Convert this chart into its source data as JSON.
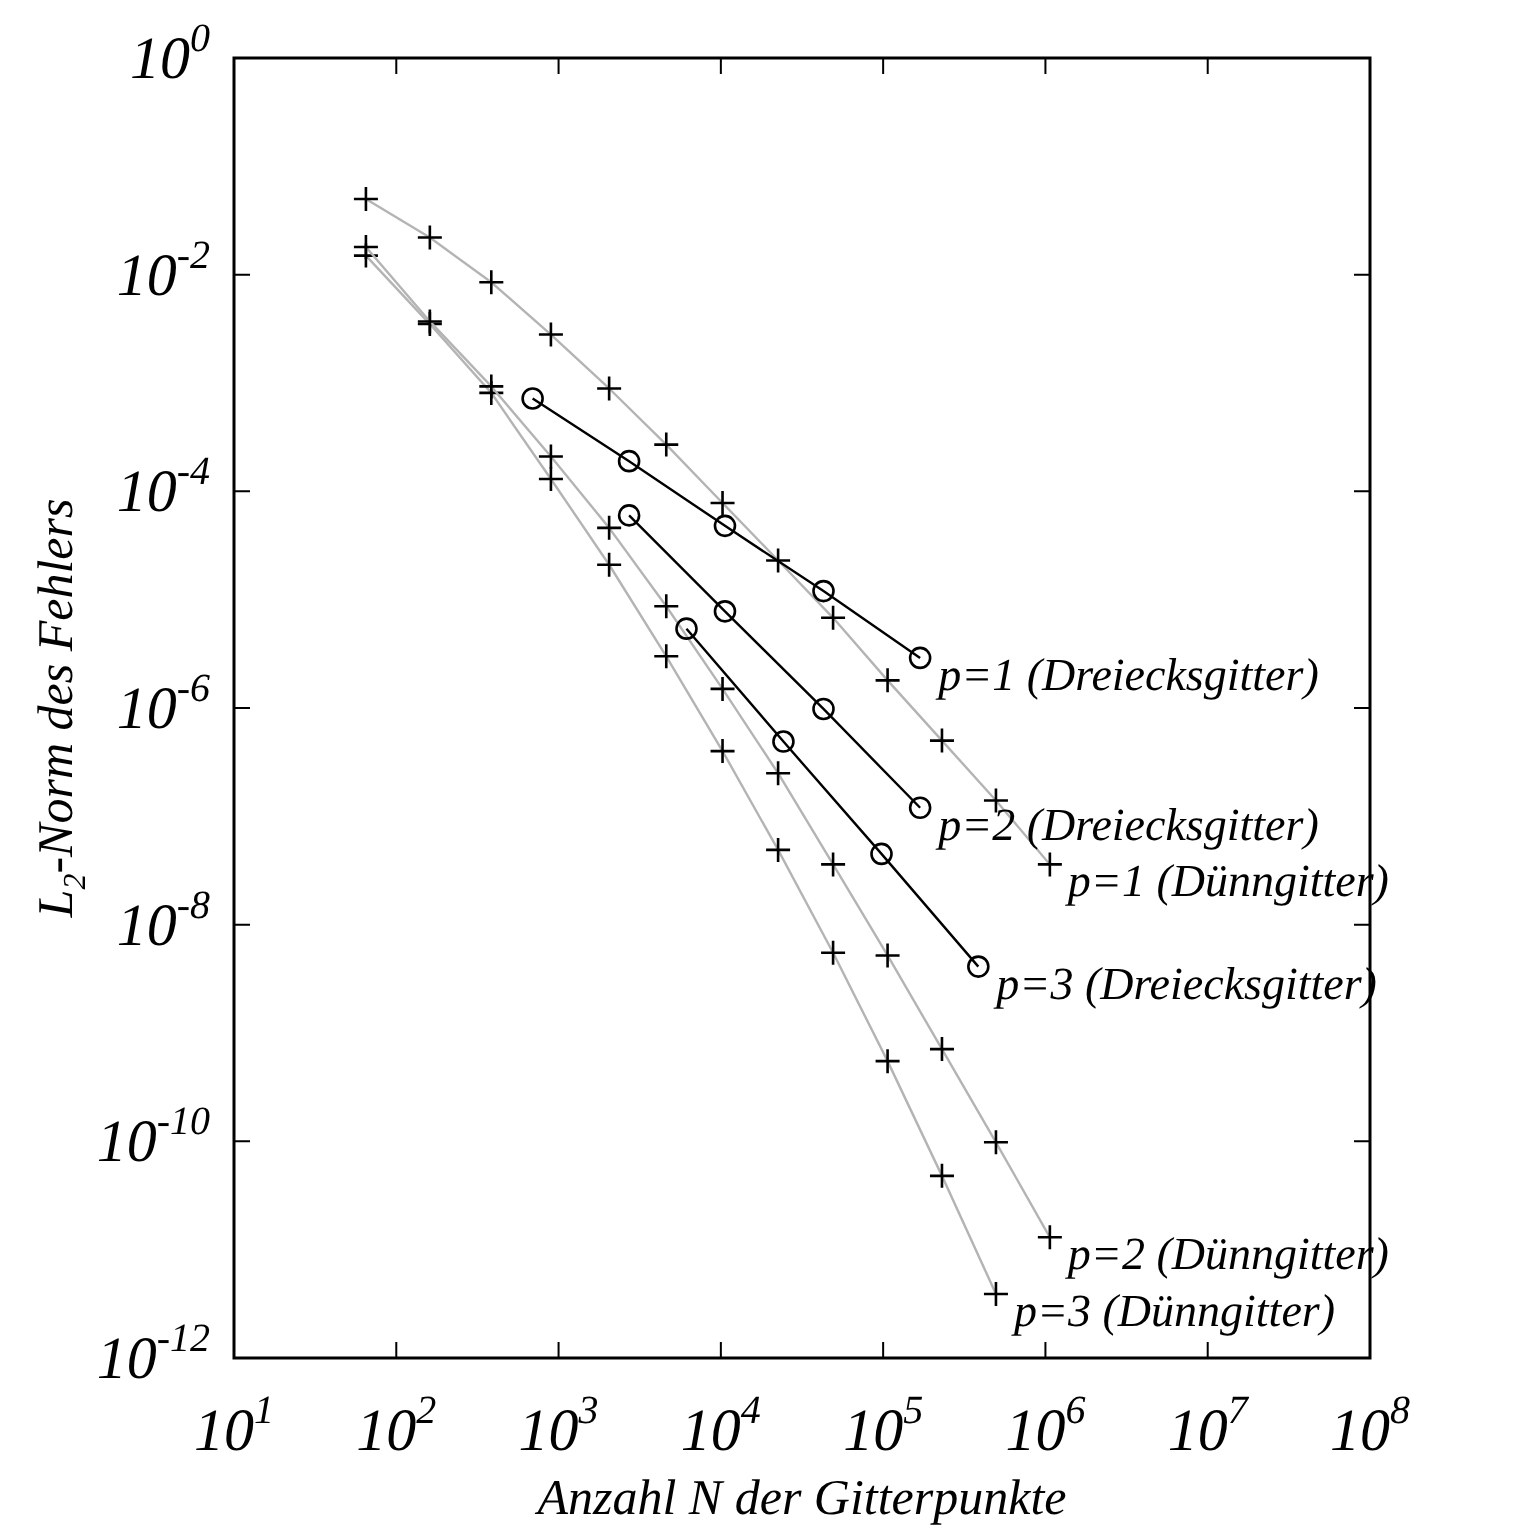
{
  "chart_data": {
    "type": "line",
    "xlabel": "Anzahl N der Gitterpunkte",
    "ylabel": "L$_{2}$-Norm des Fehlers",
    "log": "xy",
    "xlim": [
      10,
      100000000
    ],
    "ylim": [
      1e-12,
      1
    ],
    "xticks": [
      {
        "value": 10,
        "label": "10$^{1}$"
      },
      {
        "value": 100,
        "label": "10$^{2}$"
      },
      {
        "value": 1000,
        "label": "10$^{3}$"
      },
      {
        "value": 10000,
        "label": "10$^{4}$"
      },
      {
        "value": 100000,
        "label": "10$^{5}$"
      },
      {
        "value": 1000000,
        "label": "10$^{6}$"
      },
      {
        "value": 10000000,
        "label": "10$^{7}$"
      },
      {
        "value": 100000000,
        "label": "10$^{8}$"
      }
    ],
    "yticks": [
      {
        "value": 1e-12,
        "label": "10$^{-12}$"
      },
      {
        "value": 1e-10,
        "label": "10$^{-10}$"
      },
      {
        "value": 1e-08,
        "label": "10$^{-8}$"
      },
      {
        "value": 1e-06,
        "label": "10$^{-6}$"
      },
      {
        "value": 0.0001,
        "label": "10$^{-4}$"
      },
      {
        "value": 0.01,
        "label": "10$^{-2}$"
      },
      {
        "value": 1,
        "label": "10$^{0}$"
      }
    ],
    "series": [
      {
        "name": "p=1 (Dreiecksgitter)",
        "color": "#000000",
        "marker": "circle",
        "x": [
          692,
          2720,
          10600,
          42900,
          169000
        ],
        "values": [
          0.00072,
          0.00019,
          4.8e-05,
          1.2e-05,
          2.9e-06
        ]
      },
      {
        "name": "p=2 (Dreiecksgitter)",
        "color": "#000000",
        "marker": "circle",
        "x": [
          2720,
          10600,
          42900,
          169000
        ],
        "values": [
          6e-05,
          7.8e-06,
          9.8e-07,
          1.2e-07
        ]
      },
      {
        "name": "p=1 (Dünngitter)",
        "color": "#b4b4b4",
        "marker": "cross",
        "x": [
          65,
          161,
          385,
          897,
          2049,
          4609,
          10241,
          22529,
          49153,
          106497,
          230401,
          495617,
          1064961
        ],
        "values": [
          0.05,
          0.022,
          0.0085,
          0.0028,
          0.00089,
          0.00027,
          7.8e-05,
          2.3e-05,
          6.8e-06,
          1.8e-06,
          5e-07,
          1.4e-07,
          3.6e-08
        ]
      },
      {
        "name": "p=3 (Dreiecksgitter)",
        "color": "#000000",
        "marker": "circle",
        "x": [
          6140,
          24300,
          97700,
          386000
        ],
        "values": [
          5.4e-06,
          4.9e-07,
          4.5e-08,
          4.1e-09
        ]
      },
      {
        "name": "p=2 (Dünngitter)",
        "color": "#b4b4b4",
        "marker": "cross",
        "x": [
          65,
          161,
          385,
          897,
          2049,
          4609,
          10241,
          22529,
          49153,
          106497,
          230401,
          495617,
          1064961
        ],
        "values": [
          0.018,
          0.0037,
          0.00093,
          0.00021,
          4.6e-05,
          8.7e-06,
          1.5e-06,
          2.5e-07,
          3.6e-08,
          5.2e-09,
          7.1e-10,
          9.8e-11,
          1.3e-11
        ]
      },
      {
        "name": "p=3 (Dünngitter)",
        "color": "#b4b4b4",
        "marker": "cross",
        "x": [
          65,
          161,
          385,
          897,
          2049,
          4609,
          10241,
          22529,
          49153,
          106497,
          230401,
          495617
        ],
        "values": [
          0.015,
          0.0035,
          0.00081,
          0.00013,
          2.1e-05,
          3e-06,
          4e-07,
          4.9e-08,
          5.5e-09,
          5.5e-10,
          4.8e-11,
          3.9e-12
        ]
      }
    ]
  }
}
